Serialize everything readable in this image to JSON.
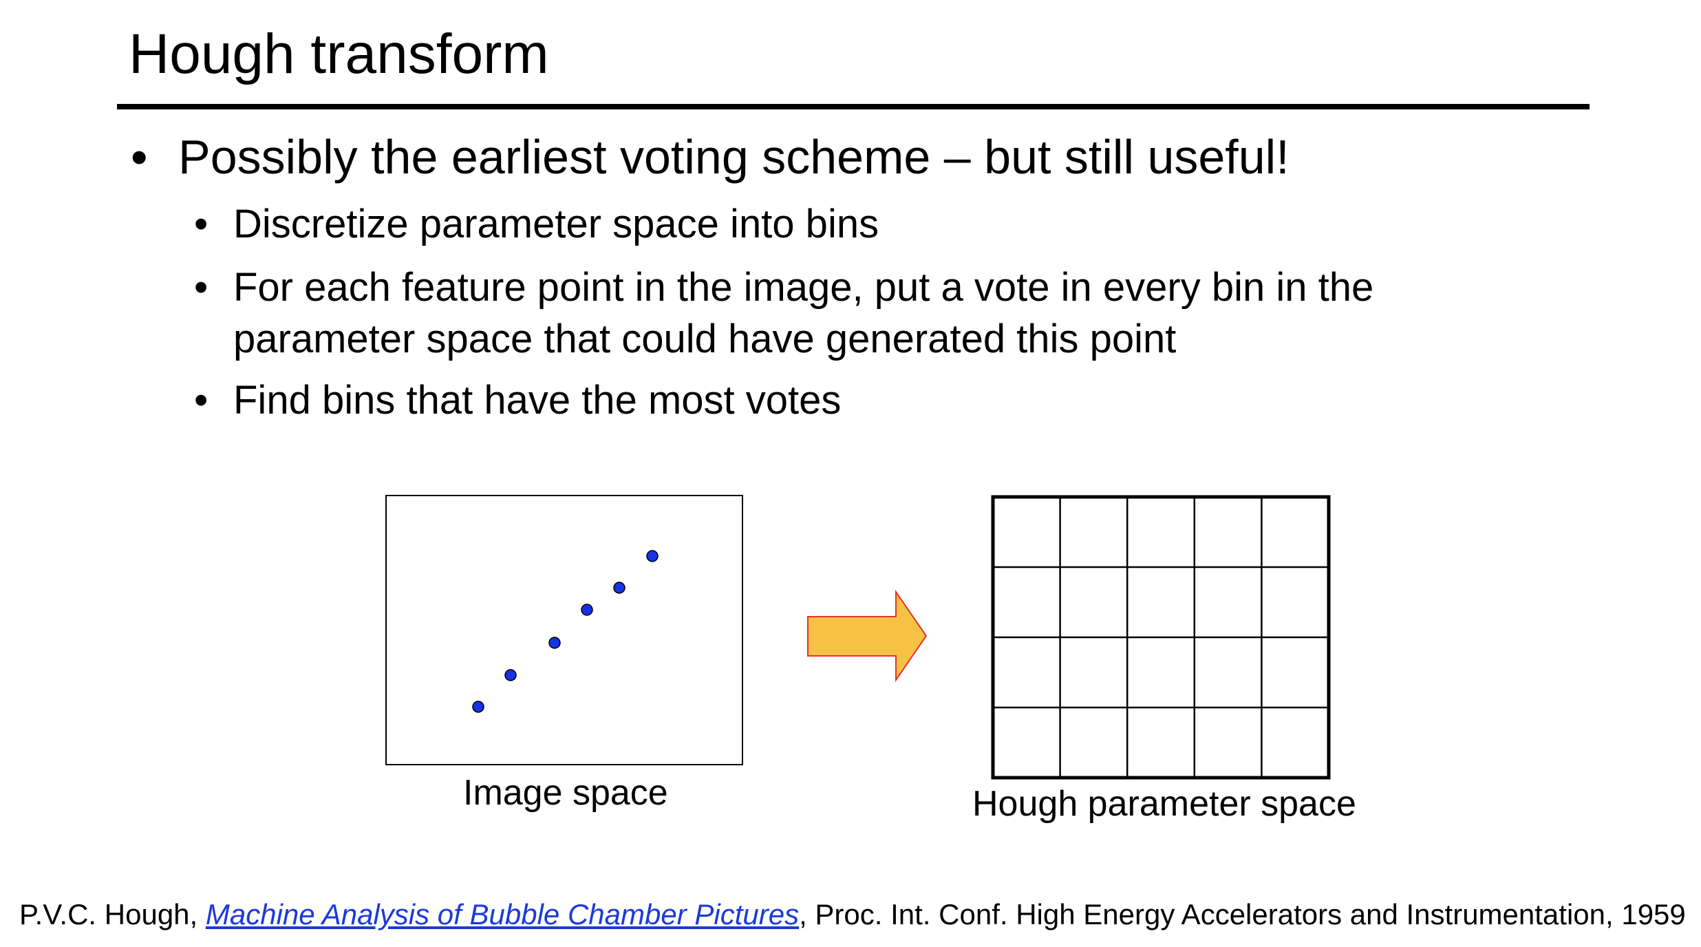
{
  "slide": {
    "title": "Hough transform"
  },
  "bullets": {
    "main": {
      "marker": "•",
      "text": "Possibly the earliest voting scheme – but still useful!"
    },
    "sub": [
      {
        "marker": "•",
        "lines": [
          "Discretize parameter space into bins"
        ]
      },
      {
        "marker": "•",
        "lines": [
          "For each feature point in the image, put a vote in every bin in the",
          "parameter space that could have generated this point"
        ]
      },
      {
        "marker": "•",
        "lines": [
          "Find bins that have the most votes"
        ]
      }
    ]
  },
  "diagram": {
    "image_space": {
      "caption": "Image space",
      "point_count": 6,
      "point_color": "#1633e6"
    },
    "arrow": {
      "fill": "#f6c244",
      "stroke": "#e8322a",
      "direction": "right"
    },
    "hough_space": {
      "caption": "Hough parameter space",
      "grid_columns": 5,
      "grid_rows": 4
    }
  },
  "citation": {
    "author": "P.V.C. Hough, ",
    "link_text": "Machine Analysis of Bubble Chamber Pictures",
    "rest": ", Proc. Int. Conf. High Energy Accelerators and Instrumentation, 1959",
    "link_color": "#1a3ad8"
  }
}
